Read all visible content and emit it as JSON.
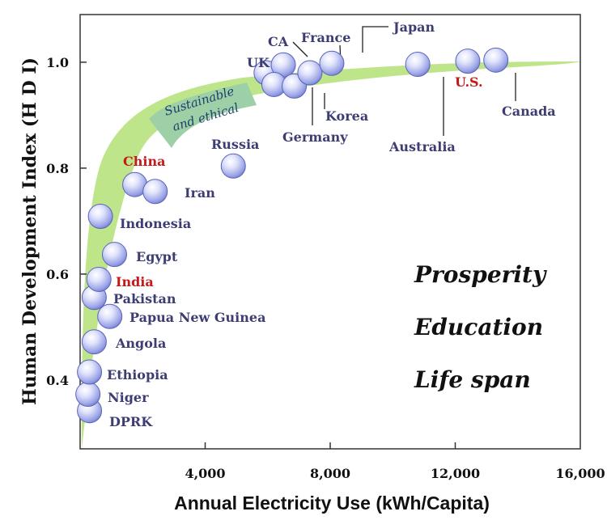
{
  "chart_data": {
    "type": "scatter",
    "xlabel": "Annual Electricity Use (kWh/Capita)",
    "ylabel": "Human Development Index (H D I)",
    "xlim": [
      0,
      16000
    ],
    "ylim": [
      0.27,
      1.09
    ],
    "x_ticks": [
      {
        "value": 4000,
        "label": "4,000"
      },
      {
        "value": 8000,
        "label": "8,000"
      },
      {
        "value": 12000,
        "label": "12,000"
      },
      {
        "value": 16000,
        "label": "16,000"
      }
    ],
    "y_ticks": [
      {
        "value": 0.4,
        "label": "0.4"
      },
      {
        "value": 0.6,
        "label": "0.6"
      },
      {
        "value": 0.8,
        "label": "0.8"
      },
      {
        "value": 1.0,
        "label": "1.0"
      }
    ],
    "band_label": [
      "Sustainable",
      "and ethical"
    ],
    "themes": [
      "Prosperity",
      "Education",
      "Life span"
    ],
    "points": [
      {
        "name": "DPRK",
        "x": 300,
        "y": 0.342
      },
      {
        "name": "Niger",
        "x": 250,
        "y": 0.373
      },
      {
        "name": "Ethiopia",
        "x": 300,
        "y": 0.415
      },
      {
        "name": "Angola",
        "x": 450,
        "y": 0.472
      },
      {
        "name": "Papua New Guinea",
        "x": 950,
        "y": 0.52
      },
      {
        "name": "Pakistan",
        "x": 450,
        "y": 0.556
      },
      {
        "name": "India",
        "x": 600,
        "y": 0.59,
        "highlight": true
      },
      {
        "name": "Egypt",
        "x": 1100,
        "y": 0.637
      },
      {
        "name": "Indonesia",
        "x": 650,
        "y": 0.709
      },
      {
        "name": "China",
        "x": 1750,
        "y": 0.769,
        "highlight": true
      },
      {
        "name": "Iran",
        "x": 2400,
        "y": 0.756
      },
      {
        "name": "Russia",
        "x": 4900,
        "y": 0.804
      },
      {
        "name": "UK",
        "x": 5950,
        "y": 0.98
      },
      {
        "name": "CA",
        "x": 6500,
        "y": 0.995
      },
      {
        "name": "Germany",
        "x": 6200,
        "y": 0.958
      },
      {
        "name": "Korea",
        "x": 6850,
        "y": 0.955
      },
      {
        "name": "France",
        "x": 7350,
        "y": 0.98
      },
      {
        "name": "Japan",
        "x": 8050,
        "y": 0.998
      },
      {
        "name": "Australia",
        "x": 10800,
        "y": 0.996
      },
      {
        "name": "U.S.",
        "x": 12400,
        "y": 1.002,
        "highlight": true
      },
      {
        "name": "Canada",
        "x": 13300,
        "y": 1.004
      }
    ]
  }
}
